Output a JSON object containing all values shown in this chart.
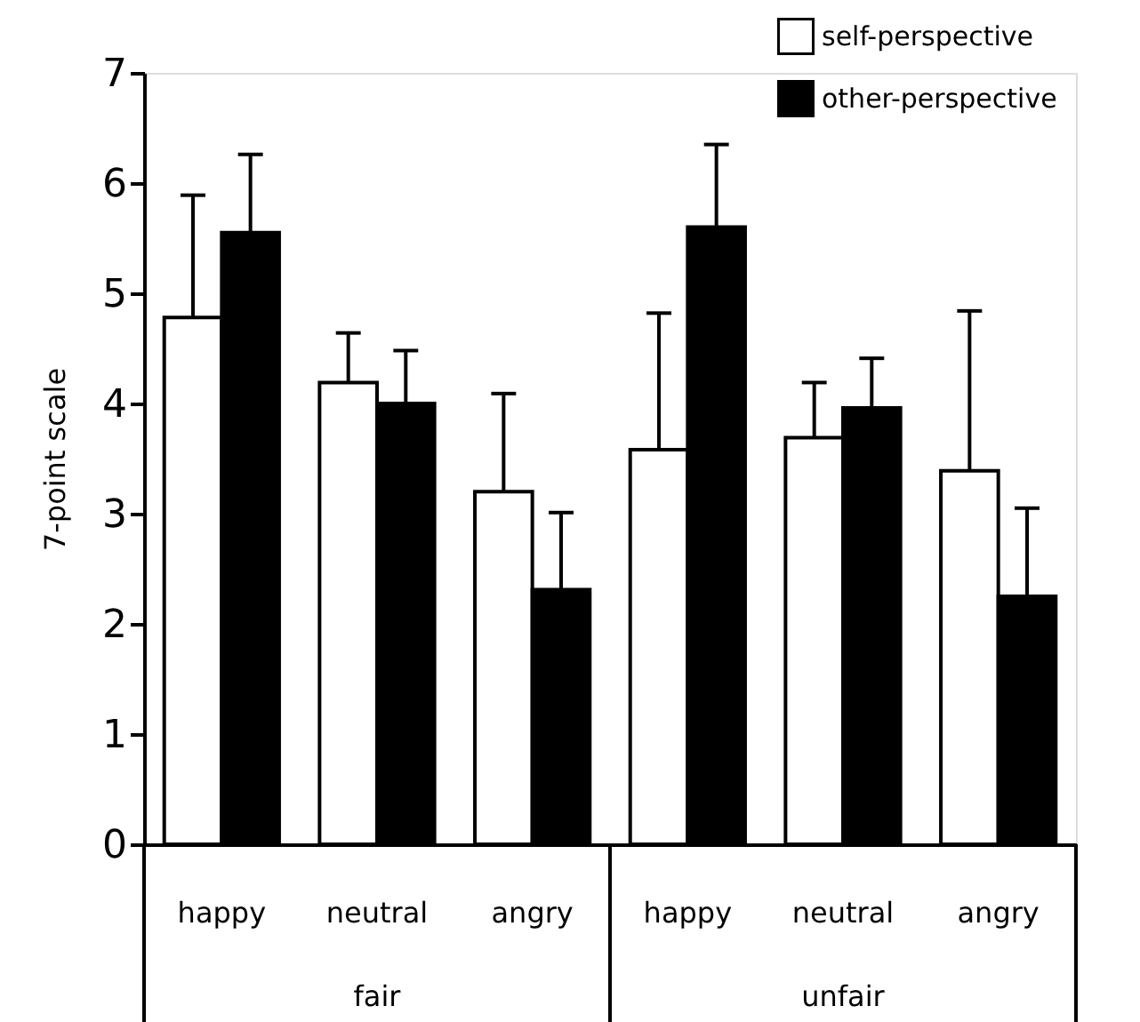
{
  "chart_data": {
    "type": "bar",
    "ylabel": "7-point scale",
    "categories": [
      "happy",
      "neutral",
      "angry",
      "happy",
      "neutral",
      "angry"
    ],
    "series": [
      {
        "name": "self-perspective",
        "color": "#ffffff",
        "values": [
          4.78,
          4.19,
          3.2,
          3.58,
          3.69,
          3.39
        ],
        "errors": [
          [
            4.78,
            5.89
          ],
          [
            4.19,
            4.64
          ],
          [
            3.2,
            4.09
          ],
          [
            3.58,
            4.82
          ],
          [
            3.69,
            4.19
          ],
          [
            3.39,
            4.84
          ]
        ]
      },
      {
        "name": "other-perspective",
        "color": "#000000",
        "values": [
          5.55,
          4.0,
          2.31,
          5.6,
          3.96,
          2.25
        ],
        "errors": [
          [
            5.55,
            6.26
          ],
          [
            4.0,
            4.48
          ],
          [
            2.31,
            3.01
          ],
          [
            5.6,
            6.35
          ],
          [
            3.96,
            4.41
          ],
          [
            2.25,
            3.05
          ]
        ]
      }
    ],
    "annotations": [
      "fair",
      "unfair"
    ],
    "ylim": [
      0,
      7
    ],
    "yticks": [
      0,
      1,
      2,
      3,
      4,
      5,
      6,
      7
    ],
    "grid": false,
    "legend": "top right"
  }
}
